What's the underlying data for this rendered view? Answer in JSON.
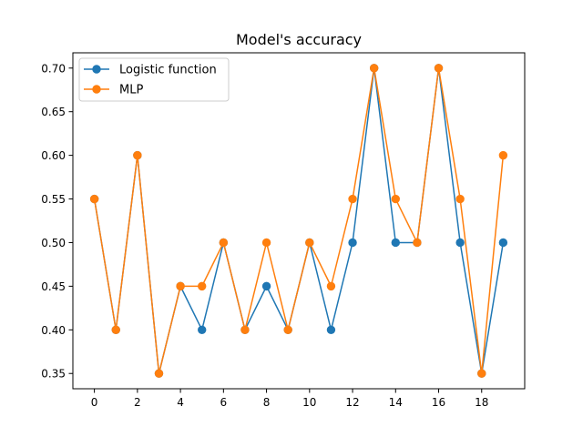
{
  "chart_data": {
    "type": "line",
    "title": "Model's accuracy",
    "xlabel": "",
    "ylabel": "",
    "x": [
      0,
      1,
      2,
      3,
      4,
      5,
      6,
      7,
      8,
      9,
      10,
      11,
      12,
      13,
      14,
      15,
      16,
      17,
      18,
      19
    ],
    "xlim": [
      -1.0,
      20.0
    ],
    "ylim": [
      0.3325,
      0.7175
    ],
    "xticks": [
      0,
      2,
      4,
      6,
      8,
      10,
      12,
      14,
      16,
      18
    ],
    "xtick_labels": [
      "0",
      "2",
      "4",
      "6",
      "8",
      "10",
      "12",
      "14",
      "16",
      "18"
    ],
    "yticks": [
      0.35,
      0.4,
      0.45,
      0.5,
      0.55,
      0.6,
      0.65,
      0.7
    ],
    "ytick_labels": [
      "0.35",
      "0.40",
      "0.45",
      "0.50",
      "0.55",
      "0.60",
      "0.65",
      "0.70"
    ],
    "grid": false,
    "legend_position": "upper-left",
    "series": [
      {
        "name": "Logistic function",
        "color": "#1f77b4",
        "values": [
          0.55,
          0.4,
          0.6,
          0.35,
          0.45,
          0.4,
          0.5,
          0.4,
          0.45,
          0.4,
          0.5,
          0.4,
          0.5,
          0.7,
          0.5,
          0.5,
          0.7,
          0.5,
          0.35,
          0.5
        ]
      },
      {
        "name": "MLP",
        "color": "#ff7f0e",
        "values": [
          0.55,
          0.4,
          0.6,
          0.35,
          0.45,
          0.45,
          0.5,
          0.4,
          0.5,
          0.4,
          0.5,
          0.45,
          0.55,
          0.7,
          0.55,
          0.5,
          0.7,
          0.55,
          0.35,
          0.6
        ]
      }
    ]
  }
}
